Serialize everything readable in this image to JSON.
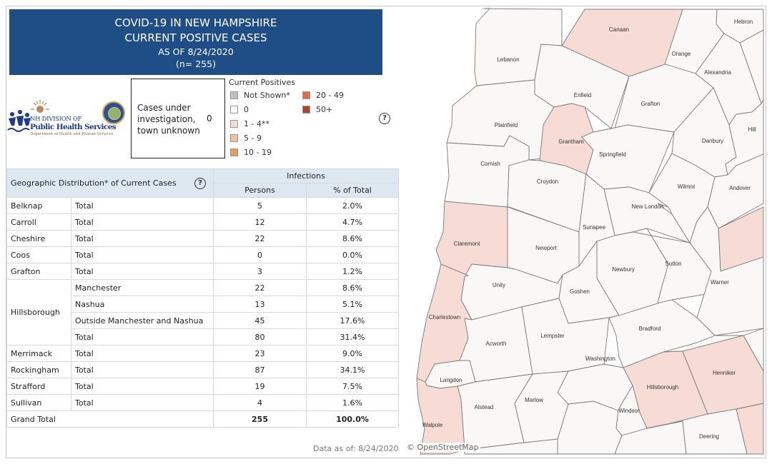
{
  "header": {
    "line1": "COVID-19 IN NEW HAMPSHIRE",
    "line2": "CURRENT POSITIVE CASES",
    "line3": "AS OF 8/24/2020",
    "line4": "(n= 255)"
  },
  "logo": {
    "line1": "NH DIVISION OF",
    "line2": "Public Health Services",
    "line3": "Department of Health and Human Services"
  },
  "investigation": {
    "label": "Cases under investigation, town unknown",
    "value": "0"
  },
  "legend": {
    "title": "Current Positives",
    "items": [
      {
        "label": "Not Shown*",
        "color": "#c0c0c0"
      },
      {
        "label": "0",
        "color": "#f9f8f6"
      },
      {
        "label": "1 - 4**",
        "color": "#f7dbd5"
      },
      {
        "label": "5 - 9",
        "color": "#f1c09b"
      },
      {
        "label": "10 - 19",
        "color": "#ea9a5b"
      },
      {
        "label": "20 - 49",
        "color": "#e36c48"
      },
      {
        "label": "50+",
        "color": "#a9452a"
      }
    ],
    "help": "?"
  },
  "table": {
    "title": "Geographic Distribution* of Current Cases",
    "help": "?",
    "group_header": "Infections",
    "col_persons": "Persons",
    "col_pct": "% of Total",
    "rows": [
      {
        "county": "Belknap",
        "sub": "Total",
        "persons": "5",
        "pct": "2.0%"
      },
      {
        "county": "Carroll",
        "sub": "Total",
        "persons": "12",
        "pct": "4.7%"
      },
      {
        "county": "Cheshire",
        "sub": "Total",
        "persons": "22",
        "pct": "8.6%"
      },
      {
        "county": "Coos",
        "sub": "Total",
        "persons": "0",
        "pct": "0.0%"
      },
      {
        "county": "Grafton",
        "sub": "Total",
        "persons": "3",
        "pct": "1.2%"
      },
      {
        "county": "Hillsborough",
        "sub": "Manchester",
        "persons": "22",
        "pct": "8.6%"
      },
      {
        "county": "",
        "sub": "Nashua",
        "persons": "13",
        "pct": "5.1%"
      },
      {
        "county": "",
        "sub": "Outside Manchester and Nashua",
        "persons": "45",
        "pct": "17.6%"
      },
      {
        "county": "",
        "sub": "Total",
        "persons": "80",
        "pct": "31.4%"
      },
      {
        "county": "Merrimack",
        "sub": "Total",
        "persons": "23",
        "pct": "9.0%"
      },
      {
        "county": "Rockingham",
        "sub": "Total",
        "persons": "87",
        "pct": "34.1%"
      },
      {
        "county": "Strafford",
        "sub": "Total",
        "persons": "19",
        "pct": "7.5%"
      },
      {
        "county": "Sullivan",
        "sub": "Total",
        "persons": "4",
        "pct": "1.6%"
      }
    ],
    "grand_total_label": "Grand Total",
    "grand_total_persons": "255",
    "grand_total_pct": "100.0%"
  },
  "footer": {
    "data_as_of": "Data as of:  8/24/2020",
    "attribution": "© OpenStreetMap"
  },
  "map": {
    "towns": [
      {
        "name": "Canaan",
        "bin": "1 - 4**"
      },
      {
        "name": "Hebron",
        "bin": "0"
      },
      {
        "name": "Lebanon",
        "bin": "0"
      },
      {
        "name": "Orange",
        "bin": "0"
      },
      {
        "name": "Alexandria",
        "bin": "0"
      },
      {
        "name": "Enfield",
        "bin": "0"
      },
      {
        "name": "Grafton",
        "bin": "0"
      },
      {
        "name": "Plainfield",
        "bin": "0"
      },
      {
        "name": "Grantham",
        "bin": "1 - 4**"
      },
      {
        "name": "Springfield",
        "bin": "0"
      },
      {
        "name": "Danbury",
        "bin": "0"
      },
      {
        "name": "Hill",
        "bin": "0"
      },
      {
        "name": "Cornish",
        "bin": "0"
      },
      {
        "name": "Croydon",
        "bin": "0"
      },
      {
        "name": "Wilmot",
        "bin": "0"
      },
      {
        "name": "Andover",
        "bin": "0"
      },
      {
        "name": "New London",
        "bin": "0"
      },
      {
        "name": "Sunapee",
        "bin": "0"
      },
      {
        "name": "Claremont",
        "bin": "1 - 4**"
      },
      {
        "name": "Newport",
        "bin": "0"
      },
      {
        "name": "Newbury",
        "bin": "0"
      },
      {
        "name": "Sutton",
        "bin": "0"
      },
      {
        "name": "Warner",
        "bin": "0"
      },
      {
        "name": "Unity",
        "bin": "0"
      },
      {
        "name": "Goshen",
        "bin": "0"
      },
      {
        "name": "Charlestown",
        "bin": "1 - 4**"
      },
      {
        "name": "Acworth",
        "bin": "0"
      },
      {
        "name": "Lempster",
        "bin": "0"
      },
      {
        "name": "Bradford",
        "bin": "0"
      },
      {
        "name": "Washington",
        "bin": "0"
      },
      {
        "name": "Langdon",
        "bin": "0"
      },
      {
        "name": "Hillsborough",
        "bin": "1 - 4**"
      },
      {
        "name": "Henniker",
        "bin": "1 - 4**"
      },
      {
        "name": "Alstead",
        "bin": "0"
      },
      {
        "name": "Marlow",
        "bin": "0"
      },
      {
        "name": "Windsor",
        "bin": "0"
      },
      {
        "name": "Walpole",
        "bin": "1 - 4**"
      },
      {
        "name": "Deering",
        "bin": "0"
      }
    ]
  }
}
